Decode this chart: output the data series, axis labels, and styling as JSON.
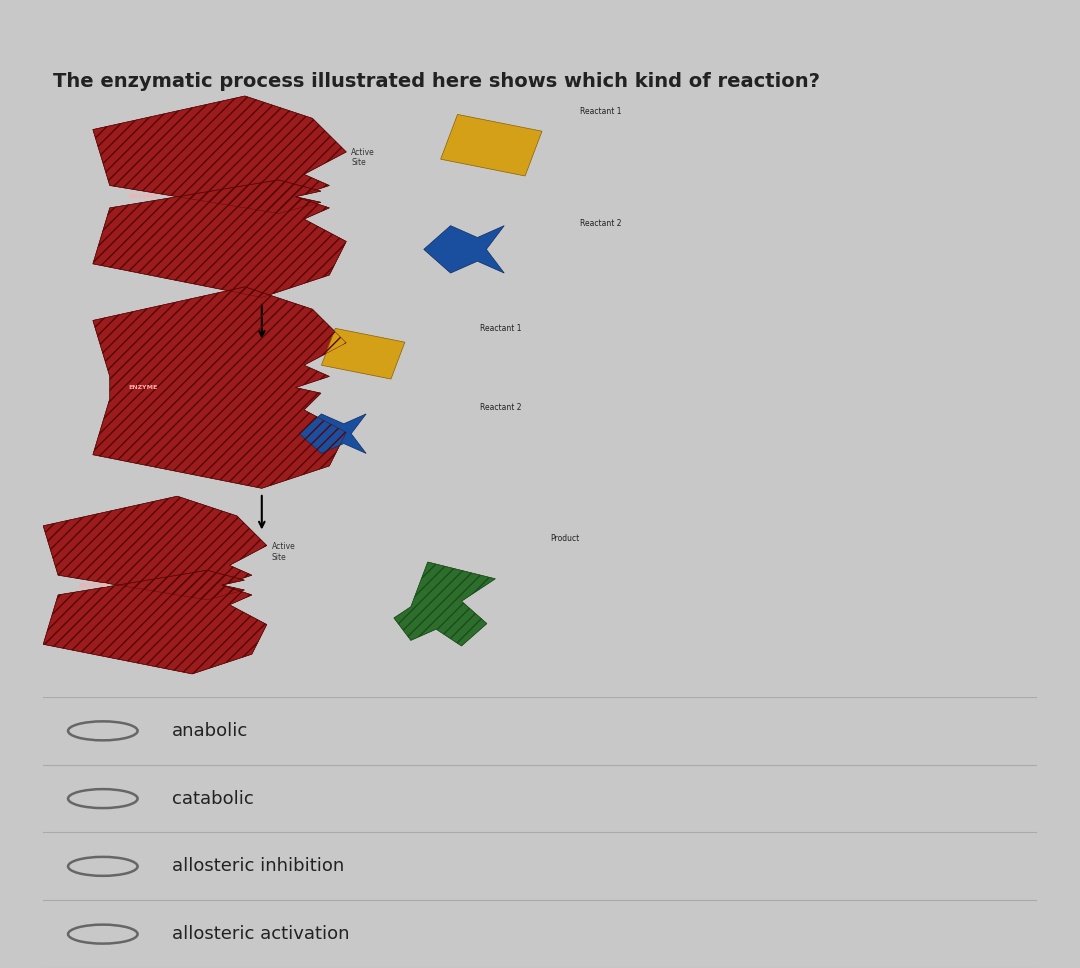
{
  "title": "The enzymatic process illustrated here shows which kind of reaction?",
  "title_fontsize": 14,
  "outer_bg": "#c8c8c8",
  "inner_bg": "#dcdcdc",
  "enzyme_color": "#9B1C1C",
  "reactant1_color": "#D4A017",
  "reactant2_color": "#1a4fa0",
  "product_color": "#2d6e2d",
  "text_color": "#222222",
  "label_color": "#444444",
  "enzyme_label_color": "#cc8888",
  "choices": [
    "anabolic",
    "catabolic",
    "allosteric inhibition",
    "allosteric activation"
  ],
  "choice_fontsize": 13,
  "label_fontsize": 6
}
